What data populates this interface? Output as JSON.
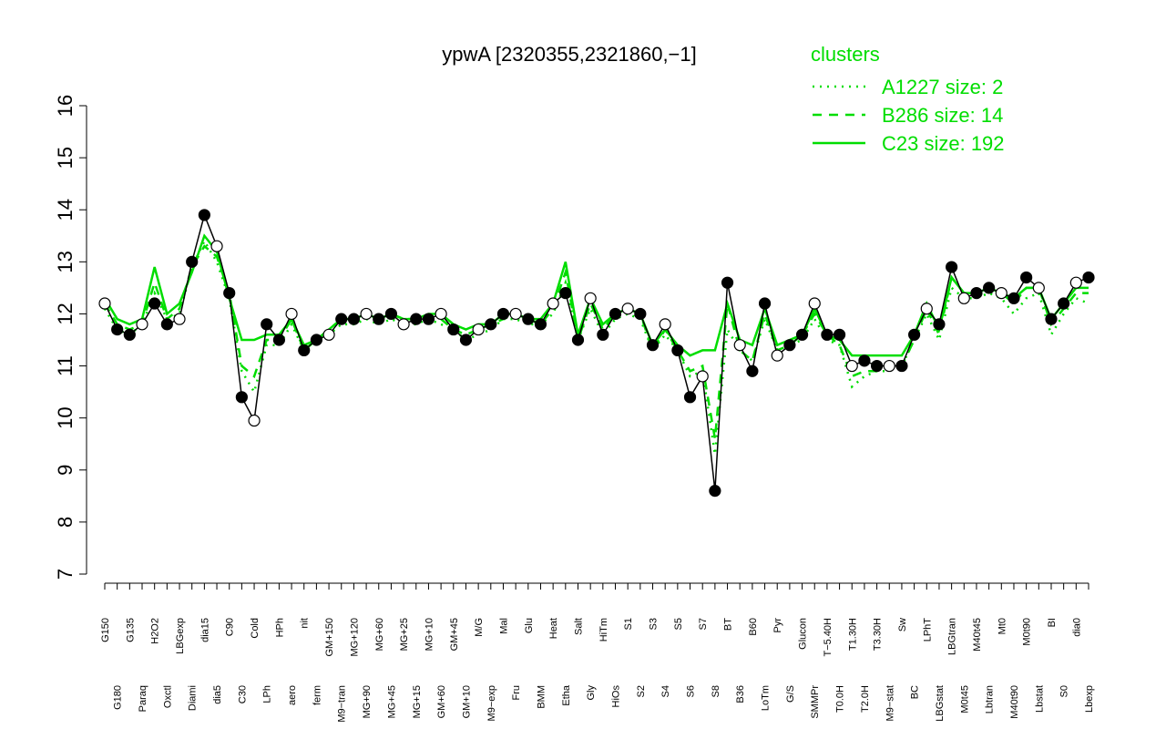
{
  "chart_data": {
    "type": "line",
    "title": "ypwA [2320355,2321860,−1]",
    "legend_title": "clusters",
    "legend_position": "top-right",
    "categories": [
      "G150",
      "G180",
      "G135",
      "Paraq",
      "H2O2",
      "Oxctl",
      "LBGexp",
      "Diami",
      "dia15",
      "dia5",
      "C90",
      "C30",
      "Cold",
      "LPh",
      "HPh",
      "aero",
      "nit",
      "ferm",
      "GM+150",
      "M9−tran",
      "MG+120",
      "MG+90",
      "MG+60",
      "MG+45",
      "MG+25",
      "MG+15",
      "MG+10",
      "GM+60",
      "GM+45",
      "GM+10",
      "M/G",
      "M9−exp",
      "Mal",
      "Fru",
      "Glu",
      "BMM",
      "Heat",
      "Etha",
      "Salt",
      "Gly",
      "HiTm",
      "HiOs",
      "S1",
      "S2",
      "S3",
      "S4",
      "S5",
      "S6",
      "S7",
      "S8",
      "BT",
      "B36",
      "B60",
      "LoTm",
      "Pyr",
      "G/S",
      "Glucon",
      "SMMPr",
      "T−5.40H",
      "T0.0H",
      "T1.30H",
      "T2.0H",
      "T3.30H",
      "M9−stat",
      "Sw",
      "BC",
      "LPhT",
      "LBGstat",
      "LBGtran",
      "M0t45",
      "M40t45",
      "Lbtran",
      "Mt0",
      "M40t90",
      "M0t90",
      "Lbstat",
      "BI",
      "S0",
      "dia0",
      "Lbexp"
    ],
    "series": [
      {
        "color": "#00dd00",
        "name": "A1227 size: 2",
        "dash": "dotted",
        "values": [
          12.1,
          11.7,
          11.6,
          11.8,
          12.4,
          11.9,
          12.0,
          12.9,
          13.4,
          13.0,
          12.3,
          10.9,
          10.5,
          11.4,
          11.4,
          11.8,
          11.3,
          11.5,
          11.6,
          11.8,
          11.8,
          11.9,
          11.8,
          11.9,
          11.8,
          11.8,
          11.9,
          11.8,
          11.7,
          11.5,
          11.6,
          11.7,
          11.9,
          11.9,
          11.8,
          11.8,
          12.0,
          12.6,
          11.5,
          12.1,
          11.6,
          11.9,
          12.0,
          11.9,
          11.3,
          11.6,
          11.3,
          10.8,
          10.9,
          9.3,
          11.7,
          11.3,
          11.1,
          11.9,
          11.3,
          11.4,
          11.5,
          11.9,
          11.5,
          11.4,
          10.6,
          10.8,
          10.9,
          10.9,
          11.0,
          11.5,
          12.0,
          11.5,
          12.5,
          12.3,
          12.3,
          12.4,
          12.3,
          12.0,
          12.3,
          12.4,
          11.6,
          12.0,
          12.3,
          12.2
        ]
      },
      {
        "color": "#00dd00",
        "name": "B286 size: 14",
        "dash": "dashed",
        "values": [
          12.2,
          11.8,
          11.7,
          11.8,
          12.6,
          11.9,
          12.1,
          12.9,
          13.3,
          13.1,
          12.4,
          11.0,
          10.8,
          11.5,
          11.5,
          11.9,
          11.3,
          11.5,
          11.7,
          11.9,
          11.9,
          12.0,
          11.9,
          12.0,
          11.9,
          11.9,
          11.9,
          11.9,
          11.7,
          11.6,
          11.7,
          11.8,
          11.9,
          12.0,
          11.9,
          11.8,
          12.1,
          12.8,
          11.5,
          12.2,
          11.7,
          12.0,
          12.1,
          12.0,
          11.3,
          11.7,
          11.3,
          10.9,
          11.0,
          9.6,
          12.2,
          11.3,
          11.1,
          12.0,
          11.3,
          11.4,
          11.6,
          12.0,
          11.6,
          11.4,
          10.8,
          10.9,
          10.9,
          11.0,
          11.0,
          11.5,
          12.1,
          11.6,
          12.7,
          12.4,
          12.4,
          12.5,
          12.4,
          12.2,
          12.5,
          12.5,
          11.8,
          12.1,
          12.4,
          12.4
        ]
      },
      {
        "color": "#00dd00",
        "name": "C23 size: 192",
        "dash": "solid",
        "values": [
          12.3,
          11.9,
          11.8,
          11.9,
          12.9,
          12.0,
          12.2,
          12.8,
          13.5,
          13.2,
          12.3,
          11.5,
          11.5,
          11.6,
          11.6,
          11.9,
          11.4,
          11.5,
          11.7,
          11.9,
          11.9,
          12.0,
          11.9,
          12.0,
          11.9,
          11.9,
          12.0,
          12.0,
          11.8,
          11.7,
          11.8,
          11.8,
          12.0,
          12.0,
          11.9,
          11.9,
          12.2,
          13.0,
          11.6,
          12.3,
          11.8,
          12.0,
          12.1,
          12.0,
          11.4,
          11.7,
          11.4,
          11.2,
          11.3,
          11.3,
          12.2,
          11.5,
          11.4,
          12.1,
          11.4,
          11.5,
          11.6,
          12.1,
          11.6,
          11.5,
          11.2,
          11.2,
          11.2,
          11.2,
          11.2,
          11.6,
          12.2,
          11.7,
          12.7,
          12.4,
          12.4,
          12.5,
          12.4,
          12.3,
          12.5,
          12.5,
          11.9,
          12.2,
          12.5,
          12.5
        ]
      },
      {
        "color": "#000000",
        "dash": "solid",
        "markers": true,
        "values": [
          12.2,
          11.7,
          11.6,
          11.8,
          12.2,
          11.8,
          11.9,
          13.0,
          13.9,
          13.3,
          12.4,
          10.4,
          9.95,
          11.8,
          11.5,
          12.0,
          11.3,
          11.5,
          11.6,
          11.9,
          11.9,
          12.0,
          11.9,
          12.0,
          11.8,
          11.9,
          11.9,
          12.0,
          11.7,
          11.5,
          11.7,
          11.8,
          12.0,
          12.0,
          11.9,
          11.8,
          12.2,
          12.4,
          11.5,
          12.3,
          11.6,
          12.0,
          12.1,
          12.0,
          11.4,
          11.8,
          11.3,
          10.4,
          10.8,
          8.6,
          12.6,
          11.4,
          10.9,
          12.2,
          11.2,
          11.4,
          11.6,
          12.2,
          11.6,
          11.6,
          11.0,
          11.1,
          11.0,
          11.0,
          11.0,
          11.6,
          12.1,
          11.8,
          12.9,
          12.3,
          12.4,
          12.5,
          12.4,
          12.3,
          12.7,
          12.5,
          11.9,
          12.2,
          12.6,
          12.7
        ]
      }
    ],
    "ylim": [
      7,
      16
    ],
    "yticks": [
      7,
      8,
      9,
      10,
      11,
      12,
      13,
      14,
      15,
      16
    ]
  }
}
